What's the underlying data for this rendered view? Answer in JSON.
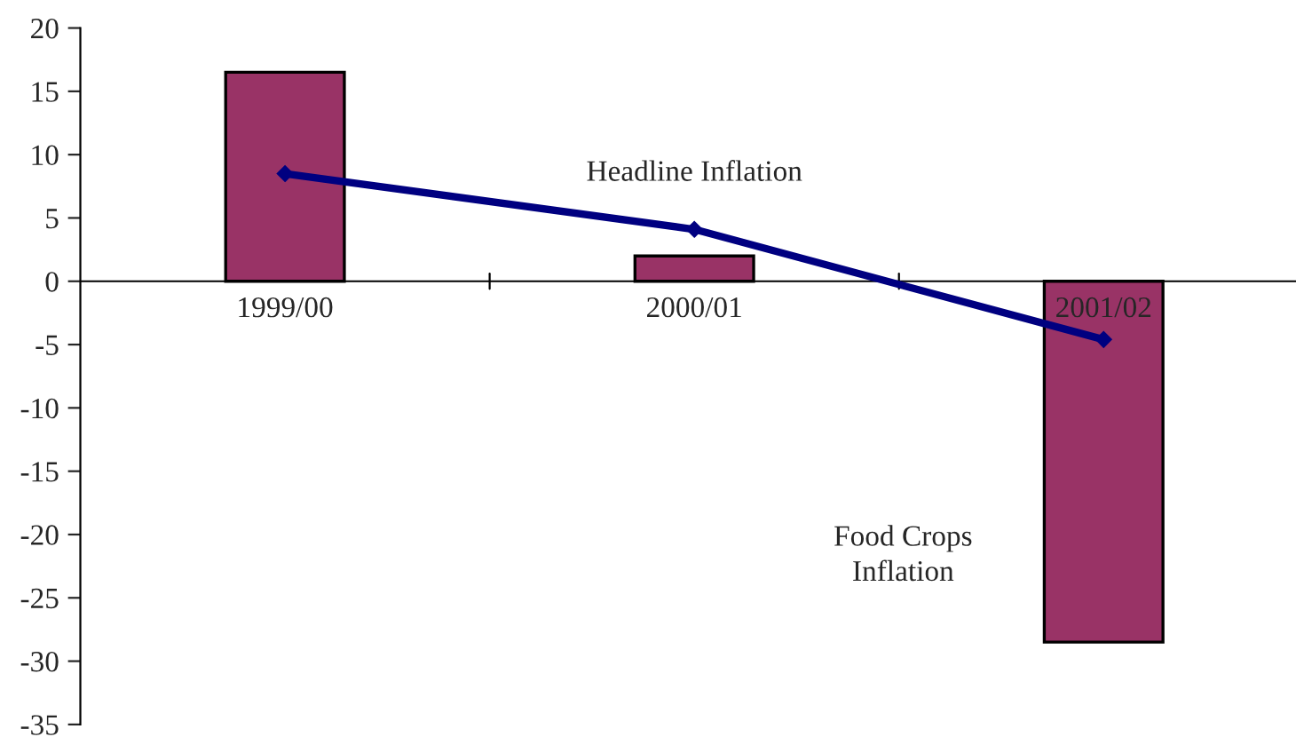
{
  "chart_data": {
    "type": "bar",
    "categories": [
      "1999/00",
      "2000/01",
      "2001/02"
    ],
    "series": [
      {
        "name": "Food Crops Inflation",
        "color": "#993366",
        "values": [
          16.5,
          2.0,
          -28.5
        ]
      },
      {
        "name": "Headline Inflation",
        "type": "line",
        "color": "#000080",
        "values": [
          8.5,
          4.1,
          -4.6
        ],
        "marker": "diamond"
      }
    ],
    "ylim": [
      -35,
      20
    ],
    "yticks": [
      -35,
      -30,
      -25,
      -20,
      -15,
      -10,
      -5,
      0,
      5,
      10,
      15,
      20
    ],
    "grid": false,
    "legend": false
  }
}
